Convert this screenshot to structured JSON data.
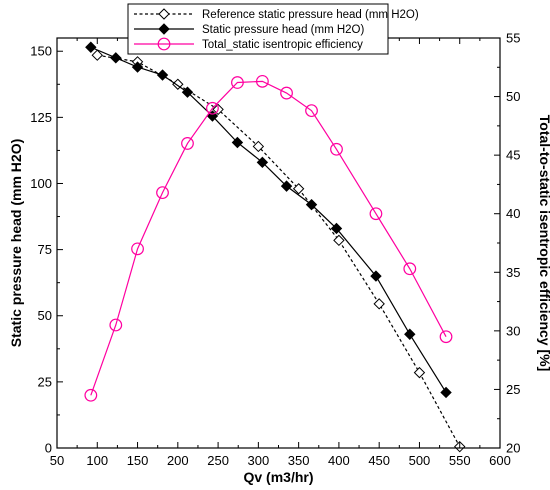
{
  "chart_data": {
    "type": "line",
    "xlabel": "Qv (m3/hr)",
    "ylabel": "Static pressure head (mm H2O)",
    "y2label": "Total-to-static isentropic efficiency [%]",
    "xlim": [
      50,
      600
    ],
    "ylim": [
      0,
      155
    ],
    "y2lim": [
      20,
      55
    ],
    "xticks": [
      "50",
      "100",
      "150",
      "200",
      "250",
      "300",
      "350",
      "400",
      "450",
      "500",
      "550",
      "600"
    ],
    "yticks": [
      "0",
      "25",
      "50",
      "75",
      "100",
      "125",
      "150"
    ],
    "y2ticks": [
      "20",
      "25",
      "30",
      "35",
      "40",
      "45",
      "50",
      "55"
    ],
    "legend_placement": "top-center",
    "grid": false,
    "series": [
      {
        "name": "Reference static pressure head (mm H2O)",
        "axis": "left",
        "color": "#000000",
        "line": "dashed",
        "marker": "open-diamond",
        "x": [
          100,
          150,
          200,
          250,
          300,
          350,
          400,
          450,
          500,
          550
        ],
        "y": [
          148.5,
          146.0,
          137.5,
          128.0,
          114.0,
          98.0,
          78.5,
          54.5,
          28.5,
          0.5
        ]
      },
      {
        "name": "Static pressure head (mm H2O)",
        "axis": "left",
        "color": "#000000",
        "line": "solid",
        "marker": "filled-diamond",
        "x": [
          92,
          123,
          150,
          181,
          212,
          243,
          274,
          305,
          335,
          366,
          397,
          446,
          488,
          533
        ],
        "y": [
          151.5,
          147.5,
          144.0,
          141.0,
          134.5,
          125.5,
          115.5,
          108.0,
          99.0,
          92.0,
          83.0,
          65.0,
          43.0,
          21.0
        ]
      },
      {
        "name": "Total_static isentropic efficiency",
        "axis": "right",
        "color": "#ff00a0",
        "line": "solid",
        "marker": "open-circle",
        "x": [
          92,
          123,
          150,
          181,
          212,
          243,
          274,
          305,
          335,
          366,
          397,
          446,
          488,
          533
        ],
        "y": [
          24.5,
          30.5,
          37.0,
          41.8,
          46.0,
          49.0,
          51.2,
          51.3,
          50.3,
          48.8,
          45.5,
          40.0,
          35.3,
          29.5
        ]
      }
    ]
  }
}
